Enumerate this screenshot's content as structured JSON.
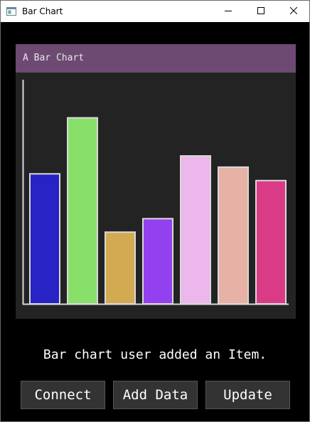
{
  "window": {
    "title": "Bar Chart",
    "icon": "app-window-icon",
    "controls": [
      "minimize-icon",
      "maximize-icon",
      "close-icon"
    ]
  },
  "chart": {
    "header_color": "#6c4a72",
    "panel_color": "#232323",
    "title": "A Bar Chart"
  },
  "chart_data": {
    "type": "bar",
    "title": "A Bar Chart",
    "xlabel": "",
    "ylabel": "",
    "ylim": [
      0,
      100
    ],
    "grid": false,
    "series": [
      {
        "values": [
          58,
          83,
          32,
          38,
          66,
          61,
          55
        ],
        "colors": [
          "#2723c4",
          "#88e06b",
          "#d3aa52",
          "#9341ef",
          "#ecb7ea",
          "#e8b1a6",
          "#da3b86"
        ]
      }
    ],
    "bar_outline": "#d9d9d9"
  },
  "status": {
    "message": "Bar chart user added an Item."
  },
  "buttons": {
    "connect": "Connect",
    "add_data": "Add Data",
    "update": "Update"
  }
}
